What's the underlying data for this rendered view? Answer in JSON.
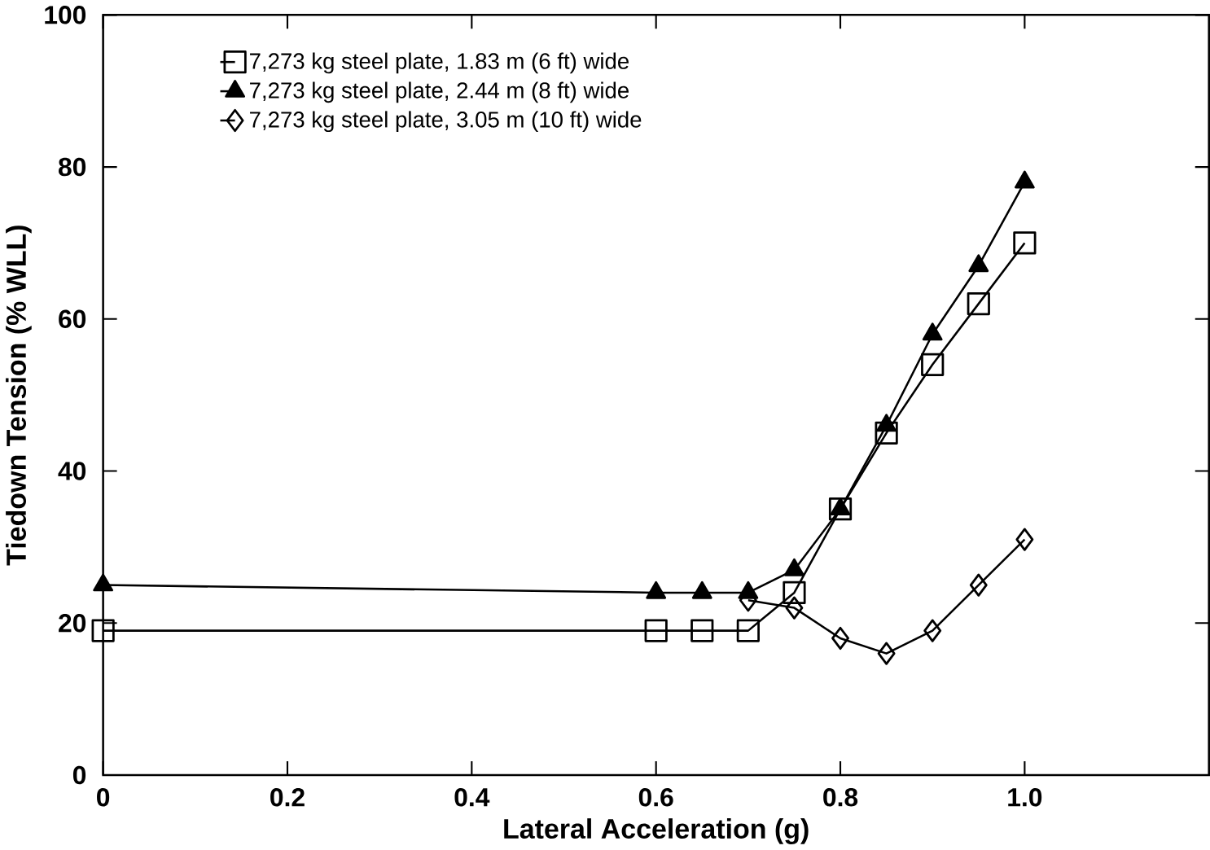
{
  "chart_data": {
    "type": "line",
    "xlabel": "Lateral Acceleration (g)",
    "ylabel": "Tiedown Tension (% WLL)",
    "xlim": [
      0,
      1.2
    ],
    "ylim": [
      0,
      100
    ],
    "xticks": [
      0,
      0.2,
      0.4,
      0.6,
      0.8,
      {
        "value": 1.0,
        "label": "1.0"
      }
    ],
    "yticks": [
      0,
      20,
      40,
      60,
      80,
      100
    ],
    "legend": "top left",
    "grid": false,
    "line_style": "solid",
    "series": [
      {
        "name": "7,273 kg steel plate,  1.83 m  (6 ft) wide",
        "color": "#000000",
        "marker": "square",
        "x": [
          0.0,
          0.6,
          0.65,
          0.7,
          0.75,
          0.8,
          0.85,
          0.9,
          0.95,
          1.0
        ],
        "values": [
          19,
          19,
          19,
          19,
          24,
          35,
          45,
          54,
          62,
          70
        ]
      },
      {
        "name": "7,273 kg steel plate,  2.44 m  (8 ft) wide",
        "color": "#000000",
        "marker": "triangle",
        "x": [
          0.0,
          0.6,
          0.65,
          0.7,
          0.75,
          0.8,
          0.85,
          0.9,
          0.95,
          1.0
        ],
        "values": [
          25,
          24,
          24,
          24,
          27,
          35,
          46,
          58,
          67,
          78
        ]
      },
      {
        "name": "7,273 kg steel plate,  3.05 m (10 ft) wide",
        "color": "#000000",
        "marker": "diamond",
        "x": [
          0.7,
          0.75,
          0.8,
          0.85,
          0.9,
          0.95,
          1.0
        ],
        "values": [
          23,
          22,
          18,
          16,
          19,
          25,
          31
        ]
      }
    ]
  }
}
